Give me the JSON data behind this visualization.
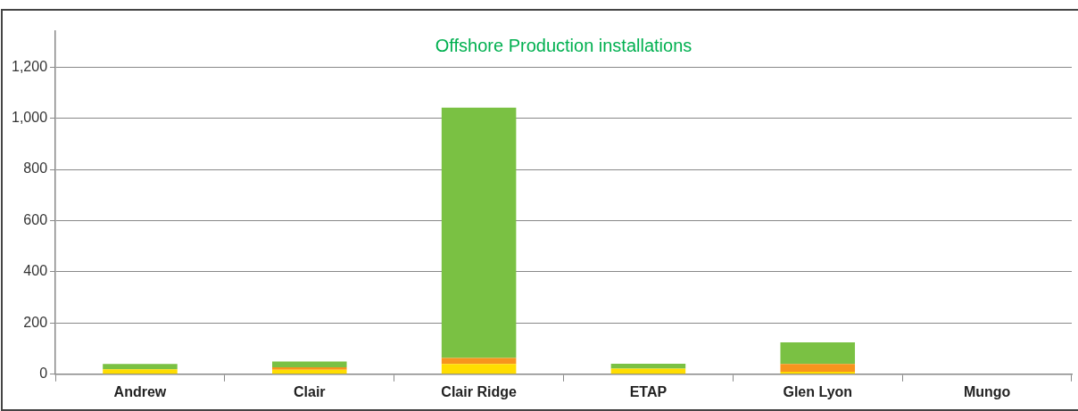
{
  "chart_data": {
    "type": "bar",
    "title": "Offshore Production installations",
    "stacked": true,
    "categories": [
      "Andrew",
      "Clair",
      "Clair Ridge",
      "ETAP",
      "Glen Lyon",
      "Mungo"
    ],
    "series": [
      {
        "color": "#ffdd00",
        "values": [
          19,
          18,
          40,
          22,
          10,
          0
        ]
      },
      {
        "color": "#f7941d",
        "values": [
          0,
          9,
          24,
          0,
          30,
          0
        ]
      },
      {
        "color": "#7ac143",
        "values": [
          21,
          23,
          977,
          19,
          85,
          0
        ]
      }
    ],
    "ylim": [
      0,
      1340
    ],
    "yticks": [
      0,
      200,
      400,
      600,
      800,
      {
        "value": 1000,
        "label": "1,000"
      },
      {
        "value": 1200,
        "label": "1,200"
      }
    ],
    "grid": "y",
    "legend": false
  }
}
